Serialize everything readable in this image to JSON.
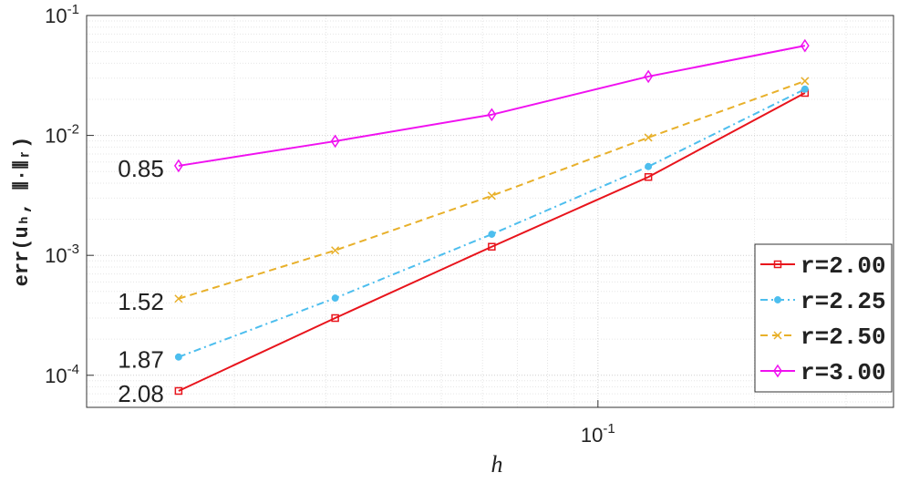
{
  "chart_data": {
    "type": "line",
    "x_label": "h",
    "y_label": "err(uₕ, ⦀·⦀ᵣ)",
    "x": [
      0.015625,
      0.03125,
      0.0625,
      0.125,
      0.25
    ],
    "series": [
      {
        "name": "r=2.00",
        "color": "#e8141c",
        "dash": "solid",
        "marker": "square",
        "values": [
          7.4e-05,
          0.0003,
          0.00118,
          0.0045,
          0.0226
        ]
      },
      {
        "name": "r=2.25",
        "color": "#4dbeee",
        "dash": "dashdot",
        "marker": "circle",
        "values": [
          0.000142,
          0.00044,
          0.0015,
          0.0055,
          0.0243
        ]
      },
      {
        "name": "r=2.50",
        "color": "#e8b02a",
        "dash": "dashed",
        "marker": "x",
        "values": [
          0.000435,
          0.0011,
          0.00314,
          0.0096,
          0.0284
        ]
      },
      {
        "name": "r=3.00",
        "color": "#f011f0",
        "dash": "solid",
        "marker": "diamond",
        "values": [
          0.00558,
          0.00895,
          0.0149,
          0.031,
          0.056
        ]
      }
    ],
    "annotations": [
      {
        "text": "0.85",
        "color": "#f011f0",
        "series": 3
      },
      {
        "text": "1.52",
        "color": "#e8b02a",
        "series": 2
      },
      {
        "text": "1.87",
        "color": "#4dbeee",
        "series": 1
      },
      {
        "text": "2.08",
        "color": "#e8141c",
        "series": 0
      }
    ],
    "xlim": [
      0.0104,
      0.37
    ],
    "ylim": [
      5.4e-05,
      0.1
    ],
    "xticks": [
      {
        "value": 0.1,
        "label": "10",
        "exponent": "-1"
      }
    ],
    "yticks": [
      {
        "value": 0.0001,
        "label": "10",
        "exponent": "-4"
      },
      {
        "value": 0.001,
        "label": "10",
        "exponent": "-3"
      },
      {
        "value": 0.01,
        "label": "10",
        "exponent": "-2"
      },
      {
        "value": 0.1,
        "label": "10",
        "exponent": "-1"
      }
    ],
    "xscale": "log",
    "yscale": "log",
    "grid": true,
    "legend": "lower right"
  }
}
